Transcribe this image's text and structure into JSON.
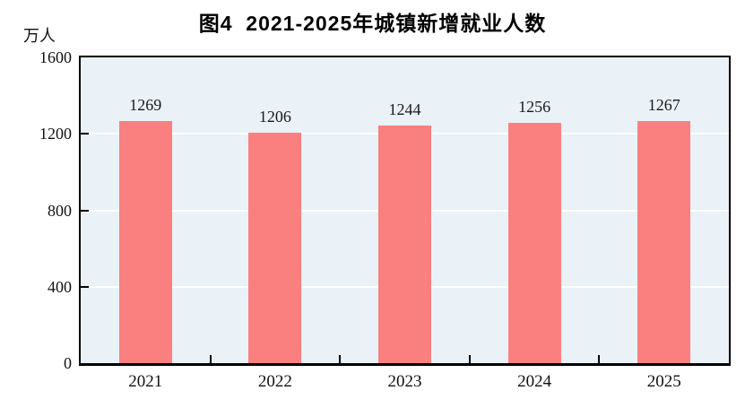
{
  "chart_data": {
    "type": "bar",
    "title": "图4  2021-2025年城镇新增就业人数",
    "unit_label": "万人",
    "categories": [
      "2021",
      "2022",
      "2023",
      "2024",
      "2025"
    ],
    "values": [
      1269,
      1206,
      1244,
      1256,
      1267
    ],
    "ylim": [
      0,
      1600
    ],
    "yticks": [
      0,
      400,
      800,
      1200,
      1600
    ],
    "xlabel": "",
    "ylabel": "万人",
    "legend_position": "none",
    "grid": true,
    "colors": {
      "bar_fill": "#FA8080",
      "plot_background": "#EAF1F7",
      "gridline": "#FFFFFF",
      "axis": "#000000",
      "text": "#111111",
      "page_background": "#FFFFFF"
    }
  }
}
